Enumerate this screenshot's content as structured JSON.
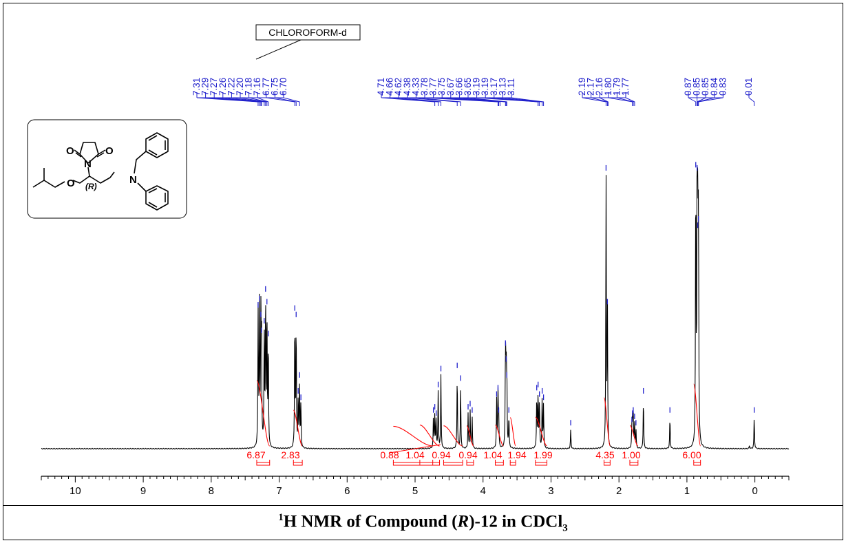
{
  "caption": {
    "nucleus_mass": "1",
    "prefix": "H NMR of Compound (",
    "config": "R",
    "suffix": ")-12 in CDCl",
    "subscript": "3"
  },
  "solvent_label": "CHLOROFORM-d",
  "molecule": {
    "atoms": [
      "O",
      "N",
      "O",
      "O",
      "N",
      "(R)"
    ]
  },
  "colors": {
    "spectrum": "#000000",
    "peak_labels": "#2222cc",
    "integrals": "#ff0000",
    "axis": "#000000"
  },
  "chart_data": {
    "type": "line",
    "title": "1H NMR of Compound (R)-12 in CDCl3",
    "xlabel": "",
    "ylabel": "",
    "x_reversed": true,
    "xlim": [
      10.5,
      -0.5
    ],
    "ylim": [
      0,
      1.05
    ],
    "x_ticks": [
      "10",
      "9",
      "8",
      "7",
      "6",
      "5",
      "4",
      "3",
      "2",
      "1",
      "0"
    ],
    "grid": false,
    "peaks": [
      {
        "ppm": 7.31,
        "h": 0.43
      },
      {
        "ppm": 7.29,
        "h": 0.45
      },
      {
        "ppm": 7.27,
        "h": 0.4
      },
      {
        "ppm": 7.26,
        "h": 0.35
      },
      {
        "ppm": 7.22,
        "h": 0.38
      },
      {
        "ppm": 7.2,
        "h": 0.48
      },
      {
        "ppm": 7.18,
        "h": 0.44
      },
      {
        "ppm": 7.16,
        "h": 0.34
      },
      {
        "ppm": 6.77,
        "h": 0.42
      },
      {
        "ppm": 6.75,
        "h": 0.4
      },
      {
        "ppm": 6.72,
        "h": 0.16
      },
      {
        "ppm": 6.7,
        "h": 0.21
      },
      {
        "ppm": 6.68,
        "h": 0.14
      },
      {
        "ppm": 4.73,
        "h": 0.1
      },
      {
        "ppm": 4.71,
        "h": 0.11
      },
      {
        "ppm": 4.69,
        "h": 0.09
      },
      {
        "ppm": 4.66,
        "h": 0.18
      },
      {
        "ppm": 4.62,
        "h": 0.23
      },
      {
        "ppm": 4.38,
        "h": 0.24
      },
      {
        "ppm": 4.33,
        "h": 0.2
      },
      {
        "ppm": 4.22,
        "h": 0.11
      },
      {
        "ppm": 4.19,
        "h": 0.12
      },
      {
        "ppm": 4.16,
        "h": 0.1
      },
      {
        "ppm": 3.8,
        "h": 0.15
      },
      {
        "ppm": 3.78,
        "h": 0.17
      },
      {
        "ppm": 3.77,
        "h": 0.1
      },
      {
        "ppm": 3.67,
        "h": 0.31
      },
      {
        "ppm": 3.66,
        "h": 0.26
      },
      {
        "ppm": 3.65,
        "h": 0.21
      },
      {
        "ppm": 3.62,
        "h": 0.1
      },
      {
        "ppm": 3.21,
        "h": 0.17
      },
      {
        "ppm": 3.19,
        "h": 0.18
      },
      {
        "ppm": 3.17,
        "h": 0.15
      },
      {
        "ppm": 3.13,
        "h": 0.16
      },
      {
        "ppm": 3.11,
        "h": 0.14
      },
      {
        "ppm": 2.71,
        "h": 0.06
      },
      {
        "ppm": 2.19,
        "h": 0.86
      },
      {
        "ppm": 2.17,
        "h": 0.44
      },
      {
        "ppm": 1.81,
        "h": 0.07
      },
      {
        "ppm": 1.8,
        "h": 0.09
      },
      {
        "ppm": 1.79,
        "h": 0.1
      },
      {
        "ppm": 1.77,
        "h": 0.08
      },
      {
        "ppm": 1.75,
        "h": 0.06
      },
      {
        "ppm": 1.64,
        "h": 0.16
      },
      {
        "ppm": 1.25,
        "h": 0.1
      },
      {
        "ppm": 0.87,
        "h": 0.87
      },
      {
        "ppm": 0.85,
        "h": 0.86
      },
      {
        "ppm": 0.84,
        "h": 0.68
      },
      {
        "ppm": 0.83,
        "h": 0.7
      },
      {
        "ppm": 0.08,
        "h": 0.01
      },
      {
        "ppm": 0.01,
        "h": 0.1
      }
    ],
    "peak_labels": [
      "7.31",
      "7.29",
      "7.27",
      "7.26",
      "7.22",
      "7.20",
      "7.18",
      "7.16",
      "6.77",
      "6.75",
      "6.70",
      "4.71",
      "4.66",
      "4.62",
      "4.38",
      "4.33",
      "3.78",
      "3.77",
      "3.75",
      "3.67",
      "3.66",
      "3.65",
      "3.19",
      "3.19",
      "3.17",
      "3.13",
      "3.11",
      "2.19",
      "2.17",
      "2.16",
      "1.80",
      "1.79",
      "1.77",
      "0.87",
      "0.85",
      "0.85",
      "0.84",
      "0.83",
      "0.01"
    ],
    "peak_label_groups": [
      {
        "start": 0,
        "count": 11,
        "from": 7.31,
        "to": 6.7
      },
      {
        "start": 11,
        "count": 16,
        "from": 4.71,
        "to": 3.11
      },
      {
        "start": 27,
        "count": 6,
        "from": 2.19,
        "to": 1.77
      },
      {
        "start": 33,
        "count": 5,
        "from": 0.87,
        "to": 0.83
      },
      {
        "start": 38,
        "count": 1,
        "from": 0.01,
        "to": 0.01
      }
    ],
    "integrals": [
      {
        "value": "6.87",
        "from": 7.33,
        "to": 7.14
      },
      {
        "value": "2.83",
        "from": 6.79,
        "to": 6.66
      },
      {
        "value": "0.88",
        "from": 5.32,
        "to": 4.74
      },
      {
        "value": "1.04",
        "from": 4.93,
        "to": 4.64
      },
      {
        "value": "0.94",
        "from": 4.58,
        "to": 4.3
      },
      {
        "value": "0.94",
        "from": 4.24,
        "to": 4.14
      },
      {
        "value": "1.04",
        "from": 3.82,
        "to": 3.7
      },
      {
        "value": "1.94",
        "from": 3.52,
        "to": 3.6
      },
      {
        "value": "1.99",
        "from": 3.23,
        "to": 3.06
      },
      {
        "value": "4.35",
        "from": 2.22,
        "to": 2.13
      },
      {
        "value": "1.00",
        "from": 1.84,
        "to": 1.72
      },
      {
        "value": "6.00",
        "from": 0.9,
        "to": 0.8
      }
    ]
  }
}
